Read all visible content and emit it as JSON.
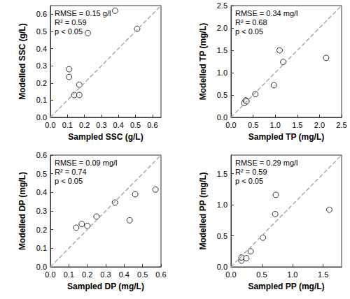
{
  "chart_data": [
    {
      "type": "scatter",
      "x_label": "Sampled SSC (g/L)",
      "y_label": "Modelled SSC (g/L)",
      "annotations": [
        "RMSE = 0.15 g/l",
        "R² = 0.59",
        "p < 0.05"
      ],
      "x": [
        0.11,
        0.11,
        0.14,
        0.17,
        0.17,
        0.22,
        0.38,
        0.51
      ],
      "values": [
        0.28,
        0.235,
        0.13,
        0.13,
        0.19,
        0.49,
        0.62,
        0.515
      ],
      "xlim": [
        0,
        0.65
      ],
      "ylim": [
        0,
        0.65
      ],
      "xticks": [
        {
          "value": 0,
          "label": "0.0"
        },
        0.1,
        0.2,
        0.3,
        0.4,
        0.5,
        0.6
      ],
      "yticks": [
        {
          "value": 0,
          "label": "0.0"
        },
        0.1,
        0.2,
        0.3,
        0.4,
        0.5,
        0.6
      ],
      "color": "#000000",
      "marker": "circle-open",
      "line_style": "dashed",
      "grid": false
    },
    {
      "type": "scatter",
      "x_label": "Sampled TP (mg/L)",
      "y_label": "Modelled TP (mg/L)",
      "annotations": [
        "RMSE = 0.34 mg/l",
        "R² = 0.68",
        "p < 0.05"
      ],
      "x": [
        0.3,
        0.33,
        0.35,
        0.55,
        0.97,
        1.1,
        1.18,
        2.15
      ],
      "values": [
        0.32,
        0.38,
        0.36,
        0.52,
        0.72,
        1.5,
        1.24,
        1.33
      ],
      "xlim": [
        0,
        2.5
      ],
      "ylim": [
        0,
        2.5
      ],
      "xticks": [
        {
          "value": 0,
          "label": "0.0"
        },
        0.5,
        {
          "value": 1,
          "label": "1.0"
        },
        1.5,
        {
          "value": 2,
          "label": "2.0"
        },
        2.5
      ],
      "yticks": [
        {
          "value": 0,
          "label": "0.0"
        },
        0.5,
        {
          "value": 1,
          "label": "1.0"
        },
        1.5,
        {
          "value": 2,
          "label": "2.0"
        },
        2.5
      ],
      "color": "#000000",
      "marker": "circle-open",
      "line_style": "dashed",
      "grid": false
    },
    {
      "type": "scatter",
      "x_label": "Sampled DP (mg/L)",
      "y_label": "Modelled DP (mg/L)",
      "annotations": [
        "RMSE = 0.09 mg/l",
        "R² = 0.74",
        "p < 0.05"
      ],
      "x": [
        0.14,
        0.17,
        0.2,
        0.25,
        0.35,
        0.43,
        0.46,
        0.57
      ],
      "values": [
        0.21,
        0.23,
        0.22,
        0.27,
        0.345,
        0.25,
        0.39,
        0.415
      ],
      "xlim": [
        0,
        0.6
      ],
      "ylim": [
        0,
        0.6
      ],
      "xticks": [
        {
          "value": 0,
          "label": "0.0"
        },
        0.1,
        0.2,
        0.3,
        0.4,
        0.5,
        0.6
      ],
      "yticks": [
        {
          "value": 0,
          "label": "0.0"
        },
        0.1,
        0.2,
        0.3,
        0.4,
        0.5,
        0.6
      ],
      "color": "#000000",
      "marker": "circle-open",
      "line_style": "dashed",
      "grid": false
    },
    {
      "type": "scatter",
      "x_label": "Sampled PP (mg/L)",
      "y_label": "Modelled PP (mg/L)",
      "annotations": [
        "RMSE = 0.29 mg/l",
        "R² = 0.59",
        "p < 0.05"
      ],
      "x": [
        0.17,
        0.17,
        0.25,
        0.32,
        0.52,
        0.72,
        0.73,
        1.6
      ],
      "values": [
        0.1,
        0.15,
        0.14,
        0.25,
        0.47,
        0.85,
        1.16,
        0.92
      ],
      "xlim": [
        0,
        1.8
      ],
      "ylim": [
        0,
        1.8
      ],
      "xticks": [
        {
          "value": 0,
          "label": "0.0"
        },
        0.5,
        {
          "value": 1,
          "label": "1.0"
        },
        1.5
      ],
      "yticks": [
        {
          "value": 0,
          "label": "0.0"
        },
        0.5,
        {
          "value": 1,
          "label": "1.0"
        },
        1.5
      ],
      "color": "#000000",
      "marker": "circle-open",
      "line_style": "dashed",
      "grid": false
    }
  ]
}
